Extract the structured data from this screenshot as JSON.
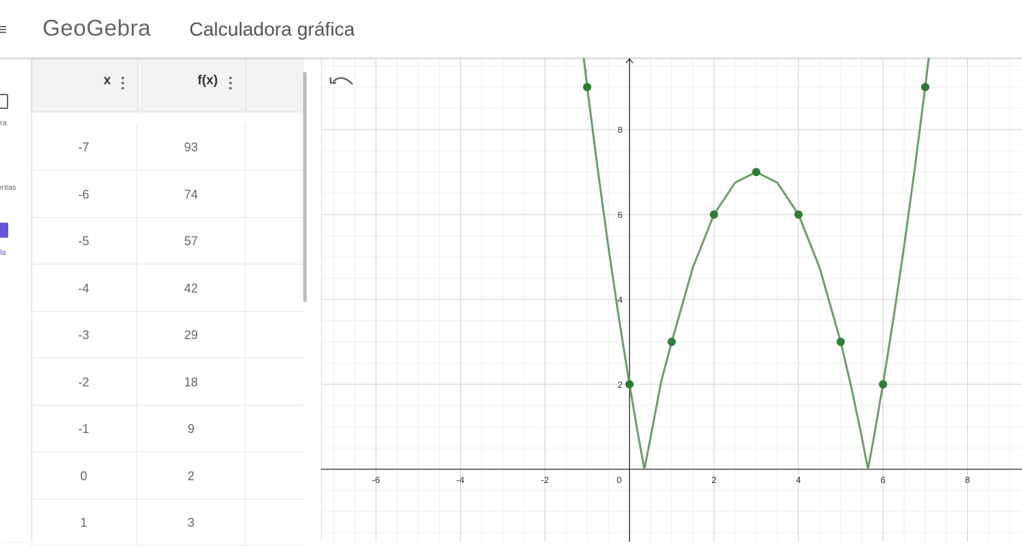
{
  "header": {
    "logo": "GeoGebra",
    "title": "Calculadora gráfica"
  },
  "sidebar": {
    "items": [
      "bra",
      "ientas",
      "bla"
    ]
  },
  "table": {
    "headers": [
      "x",
      "f(x)"
    ],
    "rows": [
      [
        -7,
        93
      ],
      [
        -6,
        74
      ],
      [
        -5,
        57
      ],
      [
        -4,
        42
      ],
      [
        -3,
        29
      ],
      [
        -2,
        18
      ],
      [
        -1,
        9
      ],
      [
        0,
        2
      ],
      [
        1,
        3
      ]
    ]
  },
  "graph": {
    "function_label": "f",
    "color": "#2e7d32",
    "curve_color": "#6a9f6a",
    "xlim": [
      -7.3,
      9.29
    ],
    "ylim": [
      -1.71,
      9.68
    ],
    "xticks": [
      -6,
      -4,
      -2,
      0,
      2,
      4,
      6,
      8
    ],
    "yticks": [
      2,
      4,
      6,
      8
    ],
    "grid": true,
    "curve": {
      "x": [
        -1.3,
        -1,
        -0.75,
        -0.5,
        -0.25,
        0,
        0.2,
        0.354,
        0.5,
        0.75,
        1,
        1.5,
        2,
        2.5,
        3,
        3.5,
        4,
        4.5,
        5,
        5.25,
        5.5,
        5.646,
        5.8,
        6,
        6.25,
        6.5,
        6.75,
        7,
        7.3
      ],
      "y": [
        11.49,
        9,
        7.06,
        5.25,
        3.56,
        2,
        0.84,
        0,
        0.75,
        2.06,
        3,
        4.75,
        6,
        6.75,
        7,
        6.75,
        6,
        4.75,
        3,
        1.94,
        0.75,
        0,
        0.84,
        2,
        3.56,
        5.25,
        7.06,
        9,
        11.49
      ]
    },
    "points": {
      "x": [
        -1,
        0,
        1,
        2,
        3,
        4,
        5,
        6,
        7
      ],
      "y": [
        9,
        2,
        3,
        6,
        7,
        6,
        3,
        2,
        9
      ]
    }
  }
}
